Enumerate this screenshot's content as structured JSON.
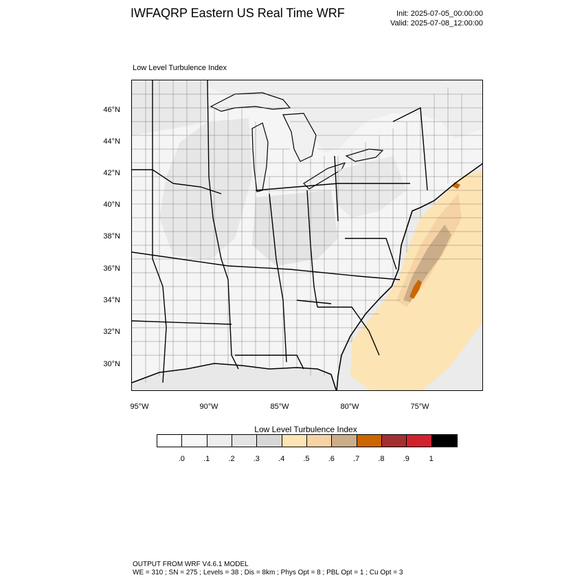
{
  "header": {
    "title": "IWFAQRP Eastern US Real Time WRF",
    "init": "Init: 2025-07-05_00:00:00",
    "valid": "Valid: 2025-07-08_12:00:00"
  },
  "panel": {
    "title": "Low Level Turbulence Index"
  },
  "map": {
    "lat_labels": [
      "46°N",
      "44°N",
      "42°N",
      "40°N",
      "38°N",
      "36°N",
      "34°N",
      "32°N",
      "30°N"
    ],
    "lon_labels": [
      "95°W",
      "90°W",
      "85°W",
      "80°W",
      "75°W"
    ],
    "colors": {
      "land": "#f4f4f4",
      "water": "#f2f2f2",
      "border": "#000000",
      "county": "#333333"
    }
  },
  "colorbar": {
    "title": "Low Level Turbulence Index",
    "colors": [
      "#ffffff",
      "#f7f7f7",
      "#eeeeee",
      "#e3e3e3",
      "#d7d7d7",
      "#fde4b4",
      "#f5d3a4",
      "#ccad89",
      "#cc6600",
      "#a33030",
      "#d1232d",
      "#000000"
    ],
    "labels": [
      ".0",
      ".1",
      ".2",
      ".3",
      ".4",
      ".5",
      ".6",
      ".7",
      ".8",
      ".9",
      "1"
    ]
  },
  "footer": {
    "line1": "OUTPUT FROM WRF V4.6.1 MODEL",
    "line2": "WE = 310 ; SN = 275 ; Levels = 38 ; Dis = 8km ; Phys Opt = 8 ; PBL Opt = 1 ; Cu Opt = 3"
  }
}
